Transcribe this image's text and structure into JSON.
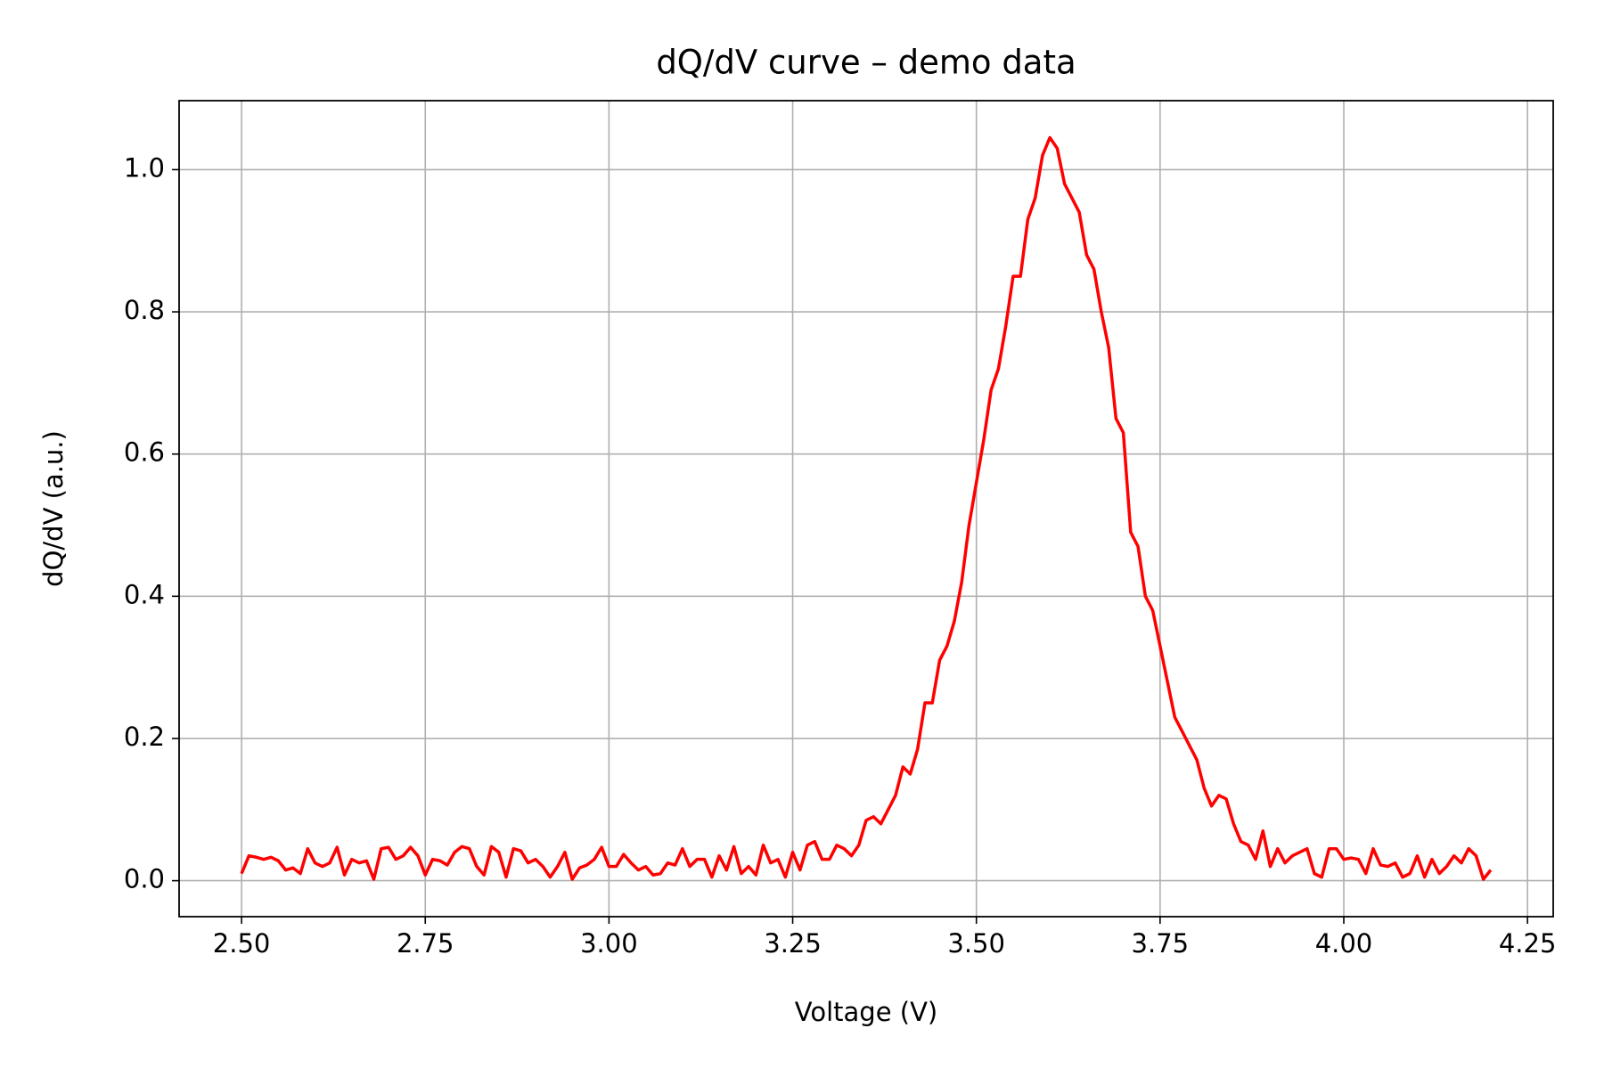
{
  "chart_data": {
    "type": "line",
    "title": "dQ/dV curve – demo data",
    "xlabel": "Voltage (V)",
    "ylabel": "dQ/dV (a.u.)",
    "x": [
      2.5,
      2.51,
      2.52,
      2.53,
      2.54,
      2.55,
      2.56,
      2.57,
      2.58,
      2.59,
      2.6,
      2.61,
      2.62,
      2.63,
      2.64,
      2.65,
      2.66,
      2.67,
      2.68,
      2.69,
      2.7,
      2.71,
      2.72,
      2.73,
      2.74,
      2.75,
      2.76,
      2.77,
      2.78,
      2.79,
      2.8,
      2.81,
      2.82,
      2.83,
      2.84,
      2.85,
      2.86,
      2.87,
      2.88,
      2.89,
      2.9,
      2.91,
      2.92,
      2.93,
      2.94,
      2.95,
      2.96,
      2.97,
      2.98,
      2.99,
      3.0,
      3.01,
      3.02,
      3.03,
      3.04,
      3.05,
      3.06,
      3.07,
      3.08,
      3.09,
      3.1,
      3.11,
      3.12,
      3.13,
      3.14,
      3.15,
      3.16,
      3.17,
      3.18,
      3.19,
      3.2,
      3.21,
      3.22,
      3.23,
      3.24,
      3.25,
      3.26,
      3.27,
      3.28,
      3.29,
      3.3,
      3.31,
      3.32,
      3.33,
      3.34,
      3.35,
      3.36,
      3.37,
      3.38,
      3.39,
      3.4,
      3.41,
      3.42,
      3.43,
      3.44,
      3.45,
      3.46,
      3.47,
      3.48,
      3.49,
      3.5,
      3.51,
      3.52,
      3.53,
      3.54,
      3.55,
      3.56,
      3.57,
      3.58,
      3.59,
      3.6,
      3.61,
      3.62,
      3.63,
      3.64,
      3.65,
      3.66,
      3.67,
      3.68,
      3.69,
      3.7,
      3.71,
      3.72,
      3.73,
      3.74,
      3.75,
      3.76,
      3.77,
      3.78,
      3.79,
      3.8,
      3.81,
      3.82,
      3.83,
      3.84,
      3.85,
      3.86,
      3.87,
      3.88,
      3.89,
      3.9,
      3.91,
      3.92,
      3.93,
      3.94,
      3.95,
      3.96,
      3.97,
      3.98,
      3.99,
      4.0,
      4.01,
      4.02,
      4.03,
      4.04,
      4.05,
      4.06,
      4.07,
      4.08,
      4.09,
      4.1,
      4.11,
      4.12,
      4.13,
      4.14,
      4.15,
      4.16,
      4.17,
      4.18,
      4.19,
      4.2
    ],
    "values": [
      0.01,
      0.035,
      0.033,
      0.03,
      0.033,
      0.028,
      0.015,
      0.018,
      0.01,
      0.045,
      0.025,
      0.02,
      0.025,
      0.047,
      0.008,
      0.03,
      0.025,
      0.028,
      0.002,
      0.045,
      0.047,
      0.03,
      0.035,
      0.047,
      0.035,
      0.008,
      0.03,
      0.028,
      0.022,
      0.04,
      0.048,
      0.045,
      0.02,
      0.008,
      0.048,
      0.04,
      0.005,
      0.045,
      0.042,
      0.025,
      0.03,
      0.02,
      0.005,
      0.02,
      0.04,
      0.002,
      0.018,
      0.022,
      0.03,
      0.047,
      0.02,
      0.02,
      0.037,
      0.025,
      0.015,
      0.02,
      0.008,
      0.01,
      0.025,
      0.022,
      0.045,
      0.02,
      0.03,
      0.03,
      0.005,
      0.035,
      0.015,
      0.048,
      0.01,
      0.02,
      0.008,
      0.05,
      0.025,
      0.03,
      0.005,
      0.04,
      0.015,
      0.05,
      0.055,
      0.03,
      0.03,
      0.05,
      0.045,
      0.035,
      0.05,
      0.085,
      0.09,
      0.08,
      0.1,
      0.12,
      0.16,
      0.15,
      0.185,
      0.25,
      0.25,
      0.31,
      0.33,
      0.365,
      0.42,
      0.5,
      0.56,
      0.62,
      0.69,
      0.72,
      0.78,
      0.85,
      0.85,
      0.93,
      0.96,
      1.02,
      1.045,
      1.03,
      0.98,
      0.96,
      0.94,
      0.88,
      0.86,
      0.8,
      0.75,
      0.65,
      0.63,
      0.49,
      0.47,
      0.4,
      0.38,
      0.33,
      0.28,
      0.23,
      0.21,
      0.19,
      0.17,
      0.13,
      0.105,
      0.12,
      0.115,
      0.08,
      0.055,
      0.05,
      0.03,
      0.07,
      0.02,
      0.045,
      0.025,
      0.035,
      0.04,
      0.045,
      0.01,
      0.005,
      0.045,
      0.045,
      0.03,
      0.032,
      0.03,
      0.01,
      0.045,
      0.022,
      0.02,
      0.025,
      0.005,
      0.01,
      0.035,
      0.005,
      0.03,
      0.01,
      0.02,
      0.035,
      0.025,
      0.045,
      0.035,
      0.002,
      0.015
    ],
    "color": "#ff0000",
    "xlim": [
      2.415,
      4.285
    ],
    "xticks": [
      {
        "value": 2.5,
        "label": "2.50"
      },
      {
        "value": 2.75,
        "label": "2.75"
      },
      {
        "value": 3.0,
        "label": "3.00"
      },
      {
        "value": 3.25,
        "label": "3.25"
      },
      {
        "value": 3.5,
        "label": "3.50"
      },
      {
        "value": 3.75,
        "label": "3.75"
      },
      {
        "value": 4.0,
        "label": "4.00"
      },
      {
        "value": 4.25,
        "label": "4.25"
      }
    ],
    "ylim": [
      -0.0506,
      1.097
    ],
    "yticks": [
      {
        "value": 0,
        "label": "0.0"
      },
      0.2,
      0.4,
      0.6,
      0.8,
      {
        "value": 1,
        "label": "1.0"
      }
    ],
    "grid": true
  }
}
